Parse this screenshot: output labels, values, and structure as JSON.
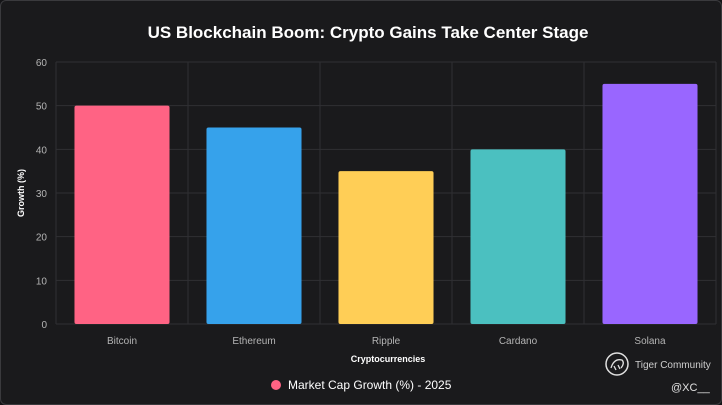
{
  "chart_data": {
    "type": "bar",
    "title": "US Blockchain Boom: Crypto Gains Take Center Stage",
    "xlabel": "Cryptocurrencies",
    "ylabel": "Growth (%)",
    "categories": [
      "Bitcoin",
      "Ethereum",
      "Ripple",
      "Cardano",
      "Solana"
    ],
    "series": [
      {
        "name": "Market Cap Growth (%) - 2025",
        "values": [
          50,
          45,
          35,
          40,
          55
        ]
      }
    ],
    "colors": [
      "#ff6384",
      "#36a2eb",
      "#ffce56",
      "#4bc0c0",
      "#9966ff"
    ],
    "ylim": [
      0,
      60
    ],
    "yticks": [
      0,
      10,
      20,
      30,
      40,
      50,
      60
    ],
    "grid": true,
    "legend": "bottom"
  },
  "watermark": {
    "brand": "Tiger Community",
    "icon": "tiger-logo-icon",
    "handle": "@XC__"
  }
}
